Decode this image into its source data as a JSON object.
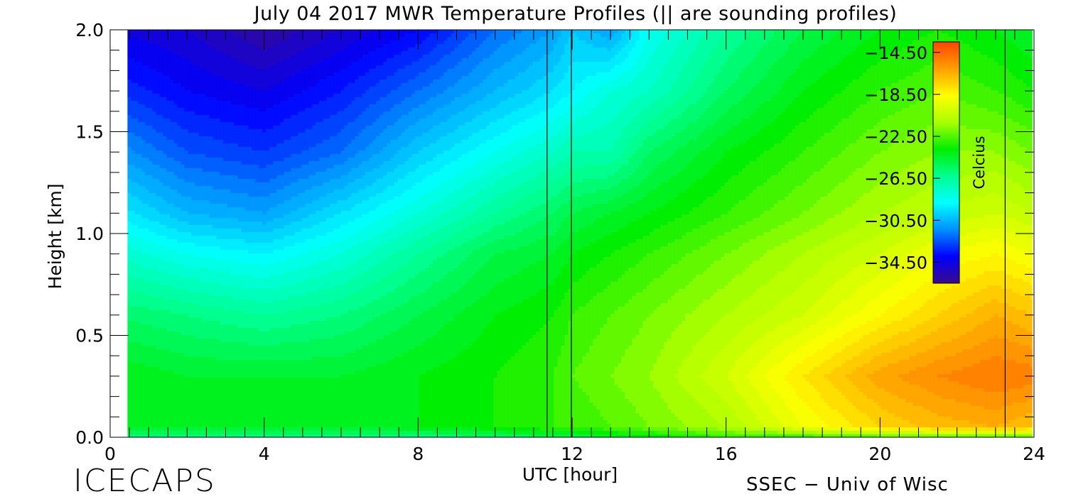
{
  "chart_data": {
    "type": "heatmap",
    "title": "July 04 2017 MWR Temperature Profiles (|| are sounding profiles)",
    "xlabel": "UTC [hour]",
    "ylabel": "Height [km]",
    "xlim": [
      0,
      24
    ],
    "ylim": [
      0,
      2.0
    ],
    "data_xrange": [
      0.45,
      23.95
    ],
    "x_ticks": [
      0,
      4,
      8,
      12,
      16,
      20,
      24
    ],
    "x_tick_labels": [
      "0",
      "4",
      "8",
      "12",
      "16",
      "20",
      "24"
    ],
    "y_ticks": [
      0.0,
      0.5,
      1.0,
      1.5,
      2.0
    ],
    "y_tick_labels": [
      "0.0",
      "0.5",
      "1.0",
      "1.5",
      "2.0"
    ],
    "x_minor_step": 0.5,
    "y_minor_step": 0.1,
    "sounding_times": [
      11.35,
      11.98,
      23.25
    ],
    "colorbar": {
      "label": "Celcius",
      "min": -36.5,
      "max": -13.5,
      "tick_values": [
        -14.5,
        -18.5,
        -22.5,
        -26.5,
        -30.5,
        -34.5
      ],
      "tick_labels": [
        "−14.50",
        "−18.50",
        "−22.50",
        "−26.50",
        "−30.50",
        "−34.50"
      ],
      "placement": "upper-right inside plot",
      "colors": [
        "#3a0a8c",
        "#0000ff",
        "#0090ff",
        "#00ffff",
        "#00ff90",
        "#00ee00",
        "#aaff00",
        "#ffff00",
        "#ffa000",
        "#ff4500"
      ]
    },
    "grid": false,
    "temperature_field_celsius": {
      "heights_km": [
        0.0,
        0.05,
        0.3,
        0.6,
        0.9,
        1.1,
        1.4,
        1.7,
        2.0
      ],
      "times_utc": [
        0,
        2,
        4,
        6,
        8,
        10,
        11.5,
        12,
        13,
        14,
        16,
        18,
        20,
        21.5,
        23,
        24
      ],
      "values": [
        [
          -26,
          -26,
          -26,
          -26,
          -26,
          -25.5,
          -25,
          -25,
          -24.5,
          -24,
          -23,
          -23,
          -22.5,
          -22.5,
          -22.5,
          -22.5
        ],
        [
          -24,
          -24.5,
          -24.5,
          -24.5,
          -24,
          -23.5,
          -23,
          -23,
          -22.5,
          -22,
          -21,
          -19,
          -17.5,
          -16.8,
          -16.5,
          -17
        ],
        [
          -24,
          -24.5,
          -24.5,
          -24.5,
          -24,
          -23.5,
          -23,
          -22.5,
          -22,
          -21.5,
          -20,
          -18,
          -16.2,
          -15.5,
          -15,
          -15.2
        ],
        [
          -25.5,
          -26,
          -26.5,
          -26,
          -25,
          -24,
          -23.5,
          -23,
          -22.5,
          -22,
          -21,
          -20,
          -18.5,
          -17.5,
          -16.5,
          -17
        ],
        [
          -27.5,
          -28.5,
          -29,
          -28,
          -26.5,
          -25,
          -24.5,
          -24,
          -23.5,
          -23,
          -22,
          -21,
          -20,
          -19,
          -18.5,
          -19
        ],
        [
          -29,
          -30.5,
          -31,
          -29.5,
          -28,
          -26.5,
          -25.5,
          -25,
          -24.5,
          -24,
          -23,
          -22,
          -21,
          -20.5,
          -20,
          -20.5
        ],
        [
          -31,
          -32.5,
          -33,
          -32,
          -30,
          -28.5,
          -27.5,
          -27,
          -27,
          -25.5,
          -24,
          -23,
          -22,
          -21.5,
          -21.5,
          -22
        ],
        [
          -33,
          -34,
          -34.5,
          -33.5,
          -32,
          -30.5,
          -29.5,
          -29,
          -28,
          -27.5,
          -25.5,
          -24,
          -23,
          -22.5,
          -23,
          -23.5
        ],
        [
          -34.5,
          -35,
          -36,
          -35,
          -34,
          -32,
          -31,
          -30,
          -31,
          -28.5,
          -26.5,
          -25,
          -24,
          -23.5,
          -24,
          -24.5
        ]
      ]
    }
  },
  "footer": {
    "left": "ICECAPS",
    "right": "SSEC − Univ of Wisc"
  }
}
